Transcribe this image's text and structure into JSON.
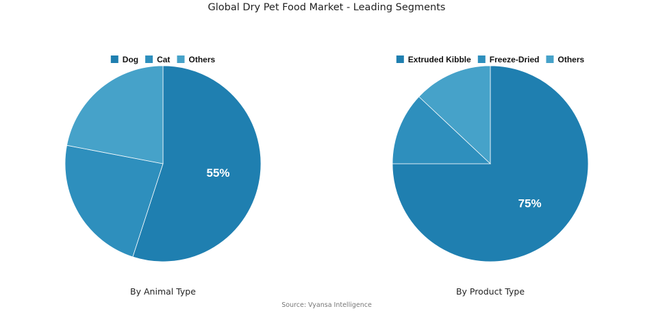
{
  "title": "Global Dry Pet Food Market - Leading Segments",
  "source": "Source: Vyansa Intelligence",
  "chart_data": [
    {
      "type": "pie",
      "subtitle": "By Animal Type",
      "legend_position": "top",
      "start_angle_deg": 0,
      "direction": "clockwise",
      "slices": [
        {
          "name": "Dog",
          "value": 55,
          "color": "#1f7fb0",
          "label": "55%"
        },
        {
          "name": "Cat",
          "value": 23,
          "color": "#2e8fbd",
          "label": ""
        },
        {
          "name": "Others",
          "value": 22,
          "color": "#46a2c9",
          "label": ""
        }
      ]
    },
    {
      "type": "pie",
      "subtitle": "By Product Type",
      "legend_position": "top",
      "start_angle_deg": 0,
      "direction": "clockwise",
      "slices": [
        {
          "name": "Extruded Kibble",
          "value": 75,
          "color": "#1f7fb0",
          "label": "75%"
        },
        {
          "name": "Freeze-Dried",
          "value": 12,
          "color": "#2e8fbd",
          "label": ""
        },
        {
          "name": "Others",
          "value": 13,
          "color": "#46a2c9",
          "label": ""
        }
      ]
    }
  ]
}
